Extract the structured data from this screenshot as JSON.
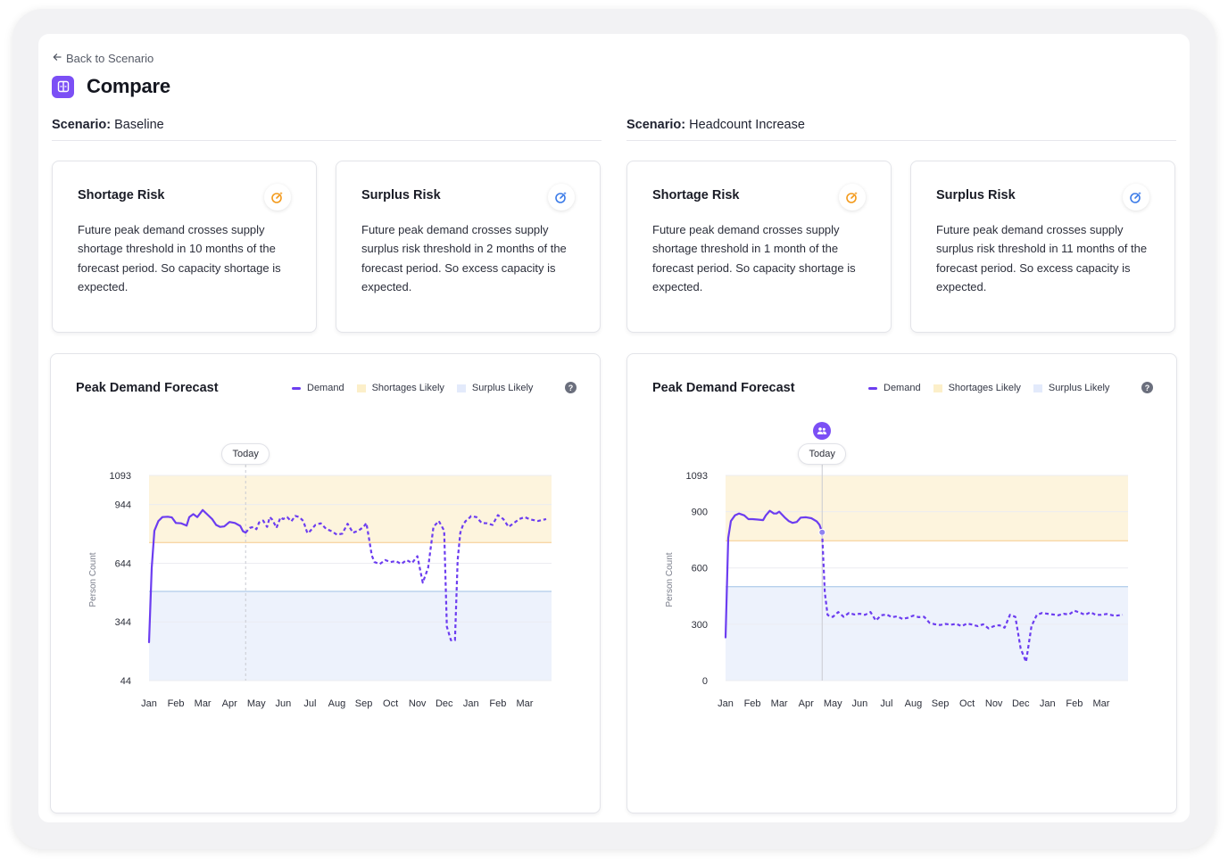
{
  "header": {
    "back_label": "Back to Scenario",
    "page_title": "Compare"
  },
  "scenario_label": "Scenario:",
  "scenarios": [
    {
      "name": "Baseline",
      "cards": [
        {
          "title": "Shortage Risk",
          "icon": "shortage-risk-icon",
          "text": "Future peak demand crosses supply shortage threshold in 10 months of the forecast period. So capacity shortage is expected."
        },
        {
          "title": "Surplus Risk",
          "icon": "surplus-risk-icon",
          "text": "Future peak demand crosses supply surplus risk threshold in 2 months of the forecast period. So excess capacity is expected."
        }
      ],
      "chart": {
        "title": "Peak Demand Forecast",
        "legend": [
          "Demand",
          "Shortages Likely",
          "Surplus Likely"
        ],
        "help": "?",
        "today_label": "Today"
      }
    },
    {
      "name": "Headcount Increase",
      "cards": [
        {
          "title": "Shortage Risk",
          "icon": "shortage-risk-icon",
          "text": "Future peak demand crosses supply shortage threshold in 1 month of the forecast period. So capacity shortage is expected."
        },
        {
          "title": "Surplus Risk",
          "icon": "surplus-risk-icon",
          "text": "Future peak demand crosses supply surplus risk threshold in 11 months of the forecast period. So excess capacity is expected."
        }
      ],
      "chart": {
        "title": "Peak Demand Forecast",
        "legend": [
          "Demand",
          "Shortages Likely",
          "Surplus Likely"
        ],
        "help": "?",
        "today_label": "Today"
      }
    }
  ],
  "colors": {
    "accent": "#7b4ff5",
    "demand": "#6c3df0",
    "shortage_band": "#fdf4dd",
    "shortage_line": "#f6c98a",
    "surplus_band": "#edf2fc",
    "surplus_line": "#9ec0e6",
    "shortage_icon": "#f39a1c",
    "surplus_icon": "#3b7be8"
  },
  "chart_data": [
    {
      "type": "line",
      "title": "Peak Demand Forecast",
      "ylabel": "Person Count",
      "xlabel": "",
      "yticks": [
        44,
        344,
        644,
        944,
        1093
      ],
      "ylim": [
        44,
        1093
      ],
      "x_tick_labels": [
        "Jan",
        "Feb",
        "Mar",
        "Apr",
        "May",
        "Jun",
        "Jul",
        "Aug",
        "Sep",
        "Oct",
        "Nov",
        "Dec",
        "Jan",
        "Feb",
        "Mar"
      ],
      "today_index": 3.6,
      "shortage_band": [
        750,
        1093
      ],
      "surplus_band": [
        44,
        500
      ],
      "series": [
        {
          "name": "Demand",
          "x": [
            0,
            0.1,
            0.2,
            0.35,
            0.5,
            0.7,
            0.85,
            1.0,
            1.2,
            1.4,
            1.5,
            1.65,
            1.8,
            1.9,
            2.0,
            2.2,
            2.35,
            2.5,
            2.65,
            2.8,
            3.0,
            3.2,
            3.4,
            3.5,
            3.6,
            3.75,
            3.9,
            4.0,
            4.1,
            4.25,
            4.4,
            4.5,
            4.6,
            4.75,
            4.9,
            5.0,
            5.15,
            5.3,
            5.45,
            5.6,
            5.75,
            5.9,
            6.0,
            6.2,
            6.4,
            6.6,
            6.8,
            7.0,
            7.2,
            7.4,
            7.6,
            7.8,
            8.0,
            8.1,
            8.2,
            8.3,
            8.4,
            8.6,
            8.8,
            9.0,
            9.2,
            9.4,
            9.6,
            9.8,
            10.0,
            10.2,
            10.4,
            10.6,
            10.8,
            11.0,
            11.1,
            11.25,
            11.4,
            11.5,
            11.6,
            11.7,
            11.8,
            11.9,
            12.0,
            12.2,
            12.4,
            12.6,
            12.8,
            13.0,
            13.2,
            13.4,
            13.6,
            13.8,
            14.0,
            14.2,
            14.5,
            14.8
          ],
          "values": [
            240,
            620,
            810,
            860,
            880,
            882,
            878,
            850,
            848,
            836,
            880,
            895,
            880,
            898,
            916,
            890,
            870,
            840,
            830,
            832,
            855,
            850,
            835,
            808,
            800,
            825,
            830,
            818,
            852,
            862,
            830,
            880,
            866,
            825,
            878,
            870,
            880,
            858,
            886,
            880,
            860,
            798,
            808,
            840,
            848,
            820,
            808,
            790,
            795,
            846,
            800,
            810,
            830,
            850,
            770,
            684,
            650,
            640,
            660,
            650,
            655,
            640,
            660,
            645,
            680,
            545,
            620,
            830,
            860,
            810,
            320,
            250,
            250,
            660,
            800,
            840,
            860,
            870,
            885,
            880,
            850,
            848,
            840,
            890,
            870,
            830,
            850,
            870,
            880,
            868,
            860,
            870
          ]
        }
      ]
    },
    {
      "type": "line",
      "title": "Peak Demand Forecast",
      "ylabel": "Person Count",
      "xlabel": "",
      "yticks": [
        0,
        300,
        600,
        900,
        1093
      ],
      "ylim": [
        0,
        1093
      ],
      "x_tick_labels": [
        "Jan",
        "Feb",
        "Mar",
        "Apr",
        "May",
        "Jun",
        "Jul",
        "Aug",
        "Sep",
        "Oct",
        "Nov",
        "Dec",
        "Jan",
        "Feb",
        "Mar"
      ],
      "today_index": 3.6,
      "shortage_band": [
        745,
        1093
      ],
      "surplus_band": [
        0,
        500
      ],
      "series": [
        {
          "name": "Demand",
          "x": [
            0,
            0.1,
            0.2,
            0.35,
            0.5,
            0.7,
            0.85,
            1.0,
            1.2,
            1.4,
            1.5,
            1.65,
            1.8,
            1.9,
            2.0,
            2.2,
            2.35,
            2.5,
            2.65,
            2.8,
            3.0,
            3.2,
            3.4,
            3.5,
            3.6,
            3.7,
            3.8,
            3.9,
            4.0,
            4.2,
            4.4,
            4.6,
            4.8,
            5.0,
            5.2,
            5.4,
            5.6,
            5.8,
            6.0,
            6.2,
            6.4,
            6.6,
            6.8,
            7.0,
            7.2,
            7.4,
            7.6,
            7.8,
            8.0,
            8.2,
            8.4,
            8.6,
            8.8,
            9.0,
            9.2,
            9.4,
            9.6,
            9.8,
            10.0,
            10.2,
            10.4,
            10.6,
            10.8,
            11.0,
            11.2,
            11.4,
            11.6,
            11.8,
            12.0,
            12.2,
            12.4,
            12.6,
            12.8,
            13.0,
            13.2,
            13.4,
            13.6,
            13.8,
            14.0,
            14.2,
            14.5,
            14.8
          ],
          "values": [
            230,
            760,
            850,
            880,
            890,
            880,
            860,
            860,
            858,
            855,
            880,
            905,
            890,
            890,
            900,
            870,
            850,
            840,
            845,
            868,
            870,
            865,
            848,
            830,
            790,
            470,
            350,
            340,
            340,
            365,
            340,
            360,
            352,
            356,
            350,
            365,
            320,
            348,
            352,
            338,
            342,
            328,
            335,
            346,
            338,
            340,
            308,
            300,
            296,
            302,
            298,
            302,
            290,
            304,
            298,
            290,
            300,
            278,
            290,
            295,
            282,
            350,
            340,
            170,
            100,
            290,
            350,
            360,
            356,
            352,
            348,
            356,
            352,
            372,
            362,
            350,
            364,
            350,
            350,
            355,
            345,
            350
          ]
        }
      ]
    }
  ]
}
